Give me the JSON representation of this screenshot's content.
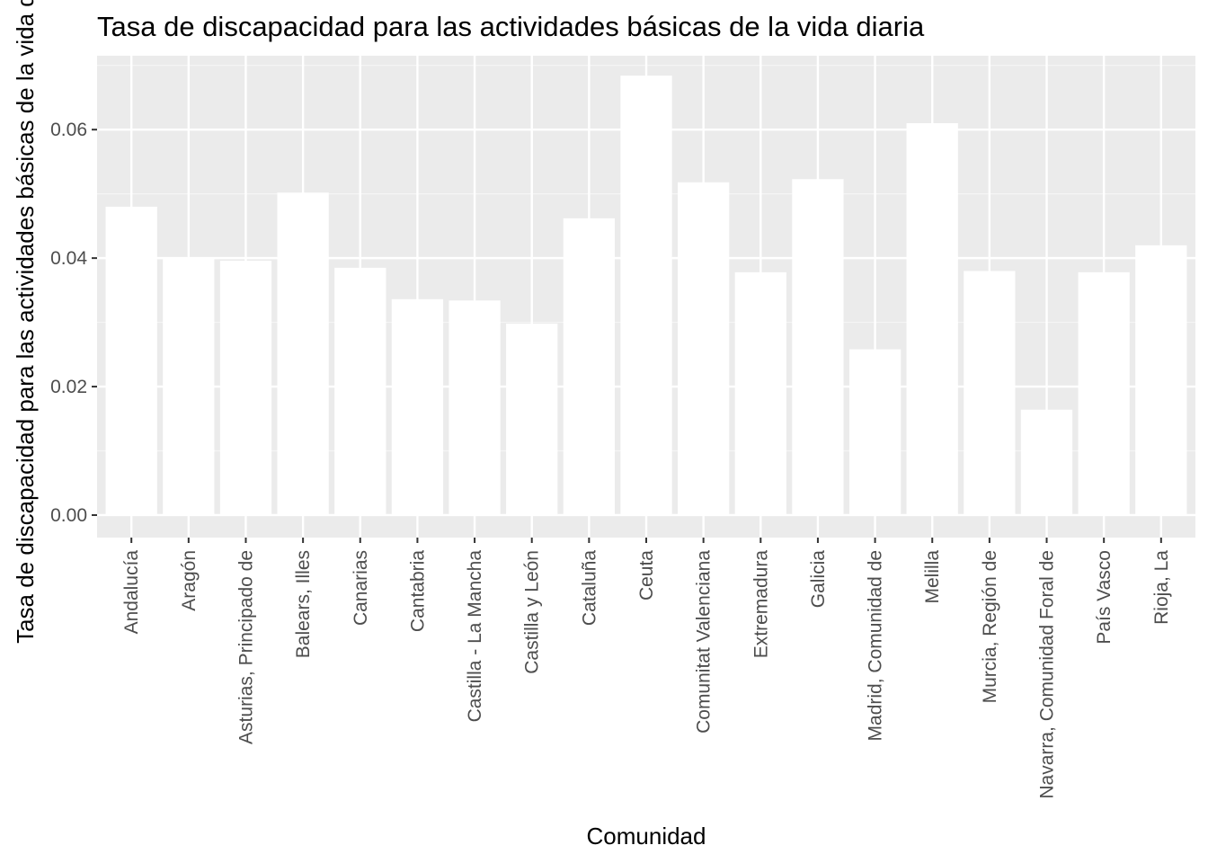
{
  "chart_data": {
    "type": "bar",
    "title": "Tasa de discapacidad para las actividades básicas de la vida diaria",
    "xlabel": "Comunidad",
    "ylabel": "Tasa de discapacidad para las actividades básicas de la vida diaria",
    "categories": [
      "Andalucía",
      "Aragón",
      "Asturias, Principado de",
      "Balears, Illes",
      "Canarias",
      "Cantabria",
      "Castilla - La Mancha",
      "Castilla y León",
      "Cataluña",
      "Ceuta",
      "Comunitat Valenciana",
      "Extremadura",
      "Galicia",
      "Madrid, Comunidad de",
      "Melilla",
      "Murcia, Región de",
      "Navarra, Comunidad Foral de",
      "País Vasco",
      "Rioja, La"
    ],
    "values": [
      0.048,
      0.04,
      0.0396,
      0.0502,
      0.0385,
      0.0336,
      0.0334,
      0.0298,
      0.0462,
      0.0684,
      0.0518,
      0.0378,
      0.0523,
      0.0258,
      0.061,
      0.038,
      0.0164,
      0.0378,
      0.042
    ],
    "ylim": [
      -0.0035,
      0.0715
    ],
    "yticks": [
      0.0,
      0.02,
      0.04,
      0.06
    ],
    "ytick_labels": [
      "0.00",
      "0.02",
      "0.04",
      "0.06"
    ],
    "grid": true,
    "legend": "none",
    "colors": {
      "panel": "#ebebeb",
      "grid_major": "#ffffff",
      "grid_minor": "#f5f5f5",
      "bar": "#ffffff",
      "tick": "#333333"
    }
  }
}
